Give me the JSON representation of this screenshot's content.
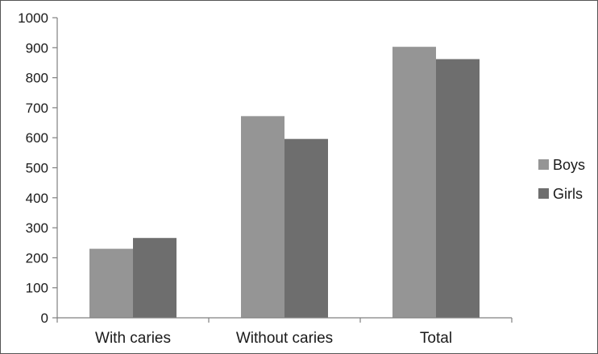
{
  "chart_data": {
    "type": "bar",
    "title": "",
    "xlabel": "",
    "ylabel": "",
    "categories": [
      "With caries",
      "Without caries",
      "Total"
    ],
    "series": [
      {
        "name": "Boys",
        "values": [
          230,
          672,
          903
        ],
        "color": "#959595"
      },
      {
        "name": "Girls",
        "values": [
          266,
          596,
          862
        ],
        "color": "#6e6e6e"
      }
    ],
    "ylim": [
      0,
      1000
    ],
    "yticks": [
      "0",
      "100",
      "200",
      "300",
      "400",
      "500",
      "600",
      "700",
      "800",
      "900",
      "1000"
    ],
    "grid": false,
    "legend": "right"
  }
}
